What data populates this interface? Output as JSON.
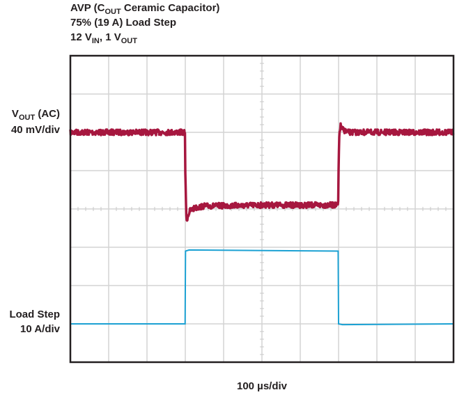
{
  "title": {
    "line1": {
      "pre": "AVP (C",
      "sub": "OUT",
      "post": " Ceramic Capacitor)"
    },
    "line2": "75% (19 A) Load Step",
    "line3": {
      "a": "12 V",
      "a_sub": "IN",
      "b": ", 1 V",
      "b_sub": "OUT"
    }
  },
  "chart_data": {
    "type": "line",
    "xlabel": "100 µs/div",
    "x_unit": "µs",
    "xlim": [
      0,
      1000
    ],
    "grid": true,
    "grid_divisions": {
      "x": 10,
      "y": 8
    },
    "channels": [
      {
        "label": {
          "pre": "V",
          "sub": "OUT",
          "post": " (AC)"
        },
        "scale": "40 mV/div",
        "unit": "mV",
        "color": "#a6173f",
        "points": [
          [
            0,
            0
          ],
          [
            299,
            0
          ],
          [
            300,
            -40
          ],
          [
            302,
            -76
          ],
          [
            303,
            -94
          ],
          [
            306,
            -88
          ],
          [
            312,
            -82
          ],
          [
            325,
            -79
          ],
          [
            350,
            -77
          ],
          [
            500,
            -76
          ],
          [
            699,
            -76
          ],
          [
            700,
            -40
          ],
          [
            702,
            -2
          ],
          [
            705,
            7
          ],
          [
            710,
            3
          ],
          [
            725,
            0
          ],
          [
            1000,
            0
          ]
        ]
      },
      {
        "label": {
          "pre": "Load Step",
          "sub": "",
          "post": ""
        },
        "scale": "10 A/div",
        "unit": "A",
        "color": "#1ba1d3",
        "points": [
          [
            0,
            0
          ],
          [
            299.5,
            0
          ],
          [
            300.5,
            19
          ],
          [
            310,
            19.3
          ],
          [
            699,
            19
          ],
          [
            700,
            0
          ],
          [
            710,
            -0.2
          ],
          [
            1000,
            0
          ]
        ]
      }
    ]
  }
}
